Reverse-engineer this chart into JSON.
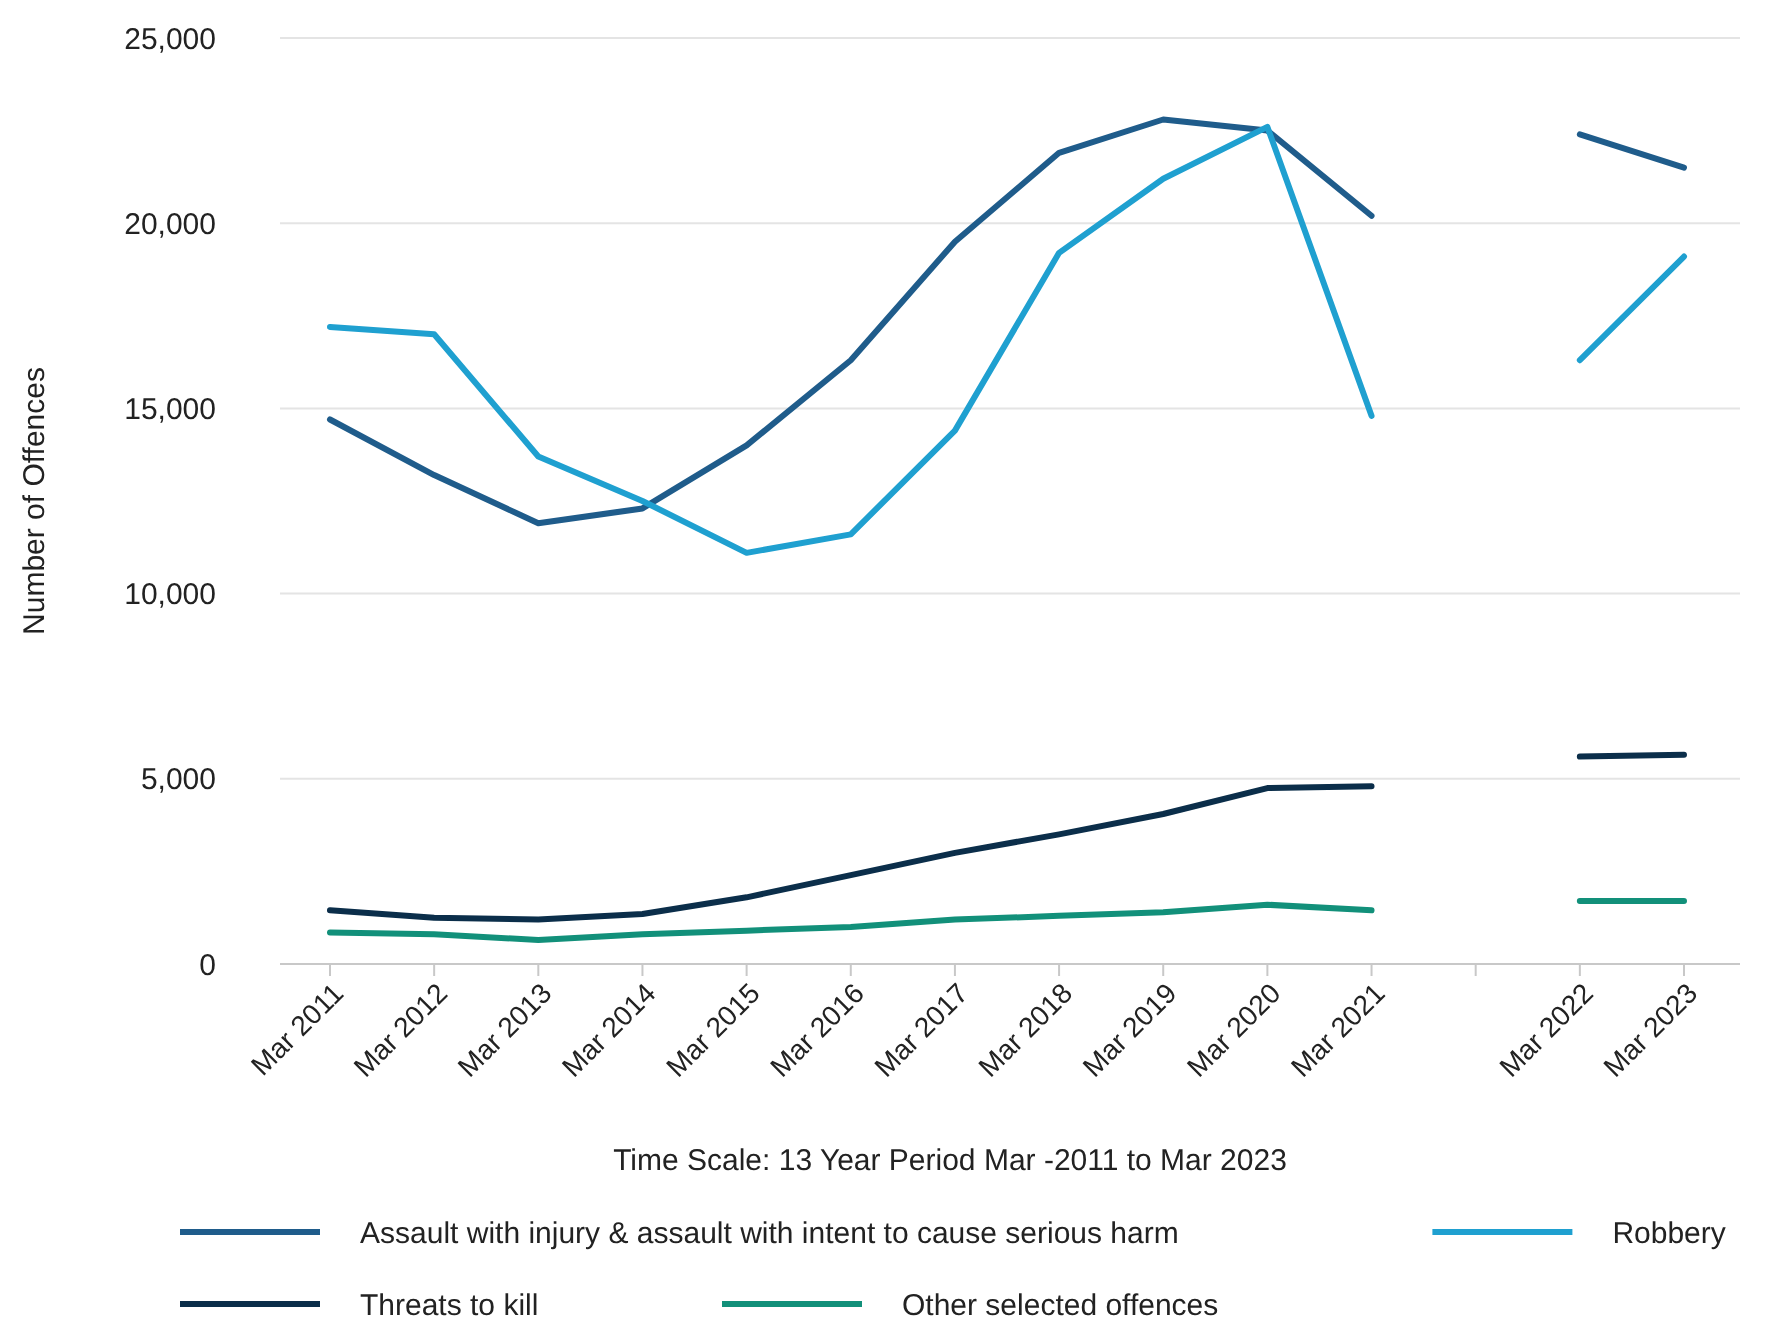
{
  "chart_data": {
    "type": "line",
    "xlabel": "Time Scale: 13 Year Period Mar -2011 to Mar 2023",
    "ylabel": "Number of Offences",
    "categories": [
      "Mar 2011",
      "Mar 2012",
      "Mar 2013",
      "Mar 2014",
      "Mar 2015",
      "Mar 2016",
      "Mar 2017",
      "Mar 2018",
      "Mar 2019",
      "Mar 2020",
      "Mar 2021",
      null,
      "Mar 2022",
      "Mar 2023"
    ],
    "ylim": [
      0,
      25000
    ],
    "yticks": [
      {
        "value": 0,
        "label": "0"
      },
      {
        "value": 5000,
        "label": "5,000"
      },
      {
        "value": 10000,
        "label": "10,000"
      },
      {
        "value": 15000,
        "label": "15,000"
      },
      {
        "value": 20000,
        "label": "20,000"
      },
      {
        "value": 25000,
        "label": "25,000"
      }
    ],
    "grid": "y",
    "legend": "bottom",
    "line_style": "solid",
    "marker": "none",
    "series": [
      {
        "name": "Assault with injury & assault with intent to cause serious harm",
        "color": "#1f5c8b",
        "values": [
          14700,
          13200,
          11900,
          12300,
          14000,
          16300,
          19500,
          21900,
          22800,
          22500,
          20200,
          null,
          22400,
          21500
        ]
      },
      {
        "name": "Robbery",
        "color": "#1fa0d0",
        "values": [
          17200,
          17000,
          13700,
          12500,
          11100,
          11600,
          14400,
          19200,
          21200,
          22600,
          14800,
          null,
          16300,
          19100
        ]
      },
      {
        "name": "Threats to kill",
        "color": "#0b2e4a",
        "values": [
          1450,
          1250,
          1200,
          1350,
          1800,
          2400,
          3000,
          3500,
          4050,
          4750,
          4800,
          null,
          5600,
          5650
        ]
      },
      {
        "name": "Other selected offences",
        "color": "#12907a",
        "values": [
          850,
          800,
          650,
          800,
          900,
          1000,
          1200,
          1300,
          1400,
          1600,
          1450,
          null,
          1700,
          1700
        ]
      }
    ]
  }
}
